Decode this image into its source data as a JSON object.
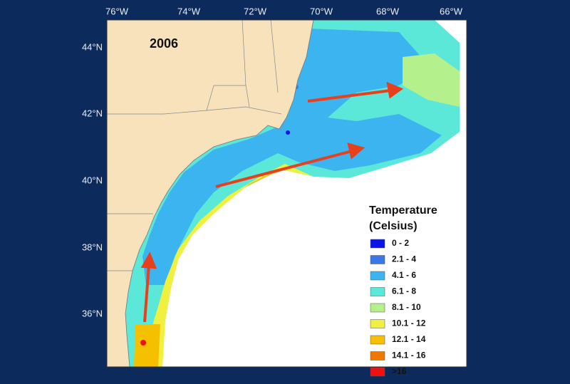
{
  "map": {
    "year_label": "2006",
    "longitude_labels": [
      "76°W",
      "74°W",
      "72°W",
      "70°W",
      "68°W",
      "66°W"
    ],
    "latitude_labels": [
      "44°N",
      "42°N",
      "40°N",
      "38°N",
      "36°N"
    ],
    "legend": {
      "title": [
        "Temperature",
        "(Celsius)"
      ],
      "items": [
        {
          "label": "0 - 2",
          "color": "#0a14e6"
        },
        {
          "label": "2.1 - 4",
          "color": "#3a78e8"
        },
        {
          "label": "4.1 - 6",
          "color": "#3cb4f0"
        },
        {
          "label": "6.1 - 8",
          "color": "#5ce8d8"
        },
        {
          "label": "8.1 - 10",
          "color": "#b4f08c"
        },
        {
          "label": "10.1 - 12",
          "color": "#f0f040"
        },
        {
          "label": "12.1 - 14",
          "color": "#f5c000"
        },
        {
          "label": "14.1 - 16",
          "color": "#f07800"
        },
        {
          "label": ">16",
          "color": "#f01010"
        }
      ]
    }
  }
}
